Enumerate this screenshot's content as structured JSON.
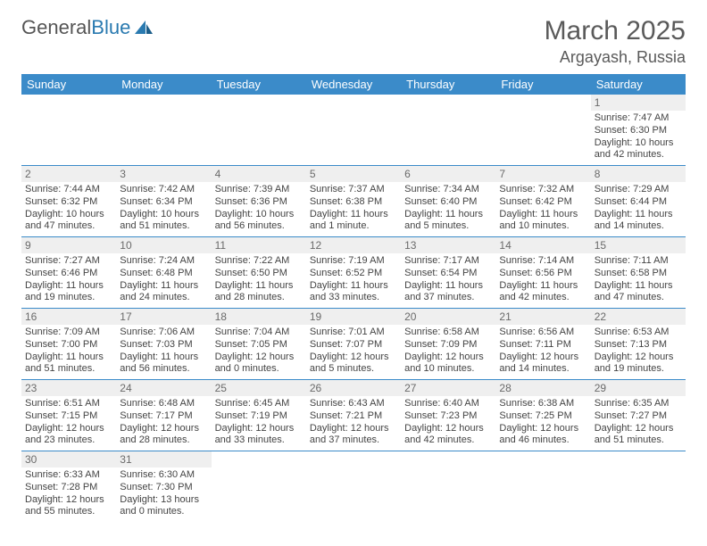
{
  "logo": {
    "general": "General",
    "blue": "Blue"
  },
  "title": "March 2025",
  "location": "Argayash, Russia",
  "colors": {
    "header_bg": "#3b8bc9",
    "header_text": "#ffffff",
    "border": "#3b8bc9",
    "daynum_bg": "#efefef",
    "daynum_text": "#6a6a6a",
    "cell_text": "#444444",
    "title_text": "#5a5a5a",
    "logo_blue": "#2a7ab0",
    "logo_gray": "#555555"
  },
  "weekdays": [
    "Sunday",
    "Monday",
    "Tuesday",
    "Wednesday",
    "Thursday",
    "Friday",
    "Saturday"
  ],
  "weeks": [
    [
      null,
      null,
      null,
      null,
      null,
      null,
      {
        "n": "1",
        "sunrise": "Sunrise: 7:47 AM",
        "sunset": "Sunset: 6:30 PM",
        "daylight1": "Daylight: 10 hours",
        "daylight2": "and 42 minutes."
      }
    ],
    [
      {
        "n": "2",
        "sunrise": "Sunrise: 7:44 AM",
        "sunset": "Sunset: 6:32 PM",
        "daylight1": "Daylight: 10 hours",
        "daylight2": "and 47 minutes."
      },
      {
        "n": "3",
        "sunrise": "Sunrise: 7:42 AM",
        "sunset": "Sunset: 6:34 PM",
        "daylight1": "Daylight: 10 hours",
        "daylight2": "and 51 minutes."
      },
      {
        "n": "4",
        "sunrise": "Sunrise: 7:39 AM",
        "sunset": "Sunset: 6:36 PM",
        "daylight1": "Daylight: 10 hours",
        "daylight2": "and 56 minutes."
      },
      {
        "n": "5",
        "sunrise": "Sunrise: 7:37 AM",
        "sunset": "Sunset: 6:38 PM",
        "daylight1": "Daylight: 11 hours",
        "daylight2": "and 1 minute."
      },
      {
        "n": "6",
        "sunrise": "Sunrise: 7:34 AM",
        "sunset": "Sunset: 6:40 PM",
        "daylight1": "Daylight: 11 hours",
        "daylight2": "and 5 minutes."
      },
      {
        "n": "7",
        "sunrise": "Sunrise: 7:32 AM",
        "sunset": "Sunset: 6:42 PM",
        "daylight1": "Daylight: 11 hours",
        "daylight2": "and 10 minutes."
      },
      {
        "n": "8",
        "sunrise": "Sunrise: 7:29 AM",
        "sunset": "Sunset: 6:44 PM",
        "daylight1": "Daylight: 11 hours",
        "daylight2": "and 14 minutes."
      }
    ],
    [
      {
        "n": "9",
        "sunrise": "Sunrise: 7:27 AM",
        "sunset": "Sunset: 6:46 PM",
        "daylight1": "Daylight: 11 hours",
        "daylight2": "and 19 minutes."
      },
      {
        "n": "10",
        "sunrise": "Sunrise: 7:24 AM",
        "sunset": "Sunset: 6:48 PM",
        "daylight1": "Daylight: 11 hours",
        "daylight2": "and 24 minutes."
      },
      {
        "n": "11",
        "sunrise": "Sunrise: 7:22 AM",
        "sunset": "Sunset: 6:50 PM",
        "daylight1": "Daylight: 11 hours",
        "daylight2": "and 28 minutes."
      },
      {
        "n": "12",
        "sunrise": "Sunrise: 7:19 AM",
        "sunset": "Sunset: 6:52 PM",
        "daylight1": "Daylight: 11 hours",
        "daylight2": "and 33 minutes."
      },
      {
        "n": "13",
        "sunrise": "Sunrise: 7:17 AM",
        "sunset": "Sunset: 6:54 PM",
        "daylight1": "Daylight: 11 hours",
        "daylight2": "and 37 minutes."
      },
      {
        "n": "14",
        "sunrise": "Sunrise: 7:14 AM",
        "sunset": "Sunset: 6:56 PM",
        "daylight1": "Daylight: 11 hours",
        "daylight2": "and 42 minutes."
      },
      {
        "n": "15",
        "sunrise": "Sunrise: 7:11 AM",
        "sunset": "Sunset: 6:58 PM",
        "daylight1": "Daylight: 11 hours",
        "daylight2": "and 47 minutes."
      }
    ],
    [
      {
        "n": "16",
        "sunrise": "Sunrise: 7:09 AM",
        "sunset": "Sunset: 7:00 PM",
        "daylight1": "Daylight: 11 hours",
        "daylight2": "and 51 minutes."
      },
      {
        "n": "17",
        "sunrise": "Sunrise: 7:06 AM",
        "sunset": "Sunset: 7:03 PM",
        "daylight1": "Daylight: 11 hours",
        "daylight2": "and 56 minutes."
      },
      {
        "n": "18",
        "sunrise": "Sunrise: 7:04 AM",
        "sunset": "Sunset: 7:05 PM",
        "daylight1": "Daylight: 12 hours",
        "daylight2": "and 0 minutes."
      },
      {
        "n": "19",
        "sunrise": "Sunrise: 7:01 AM",
        "sunset": "Sunset: 7:07 PM",
        "daylight1": "Daylight: 12 hours",
        "daylight2": "and 5 minutes."
      },
      {
        "n": "20",
        "sunrise": "Sunrise: 6:58 AM",
        "sunset": "Sunset: 7:09 PM",
        "daylight1": "Daylight: 12 hours",
        "daylight2": "and 10 minutes."
      },
      {
        "n": "21",
        "sunrise": "Sunrise: 6:56 AM",
        "sunset": "Sunset: 7:11 PM",
        "daylight1": "Daylight: 12 hours",
        "daylight2": "and 14 minutes."
      },
      {
        "n": "22",
        "sunrise": "Sunrise: 6:53 AM",
        "sunset": "Sunset: 7:13 PM",
        "daylight1": "Daylight: 12 hours",
        "daylight2": "and 19 minutes."
      }
    ],
    [
      {
        "n": "23",
        "sunrise": "Sunrise: 6:51 AM",
        "sunset": "Sunset: 7:15 PM",
        "daylight1": "Daylight: 12 hours",
        "daylight2": "and 23 minutes."
      },
      {
        "n": "24",
        "sunrise": "Sunrise: 6:48 AM",
        "sunset": "Sunset: 7:17 PM",
        "daylight1": "Daylight: 12 hours",
        "daylight2": "and 28 minutes."
      },
      {
        "n": "25",
        "sunrise": "Sunrise: 6:45 AM",
        "sunset": "Sunset: 7:19 PM",
        "daylight1": "Daylight: 12 hours",
        "daylight2": "and 33 minutes."
      },
      {
        "n": "26",
        "sunrise": "Sunrise: 6:43 AM",
        "sunset": "Sunset: 7:21 PM",
        "daylight1": "Daylight: 12 hours",
        "daylight2": "and 37 minutes."
      },
      {
        "n": "27",
        "sunrise": "Sunrise: 6:40 AM",
        "sunset": "Sunset: 7:23 PM",
        "daylight1": "Daylight: 12 hours",
        "daylight2": "and 42 minutes."
      },
      {
        "n": "28",
        "sunrise": "Sunrise: 6:38 AM",
        "sunset": "Sunset: 7:25 PM",
        "daylight1": "Daylight: 12 hours",
        "daylight2": "and 46 minutes."
      },
      {
        "n": "29",
        "sunrise": "Sunrise: 6:35 AM",
        "sunset": "Sunset: 7:27 PM",
        "daylight1": "Daylight: 12 hours",
        "daylight2": "and 51 minutes."
      }
    ],
    [
      {
        "n": "30",
        "sunrise": "Sunrise: 6:33 AM",
        "sunset": "Sunset: 7:28 PM",
        "daylight1": "Daylight: 12 hours",
        "daylight2": "and 55 minutes."
      },
      {
        "n": "31",
        "sunrise": "Sunrise: 6:30 AM",
        "sunset": "Sunset: 7:30 PM",
        "daylight1": "Daylight: 13 hours",
        "daylight2": "and 0 minutes."
      },
      null,
      null,
      null,
      null,
      null
    ]
  ]
}
